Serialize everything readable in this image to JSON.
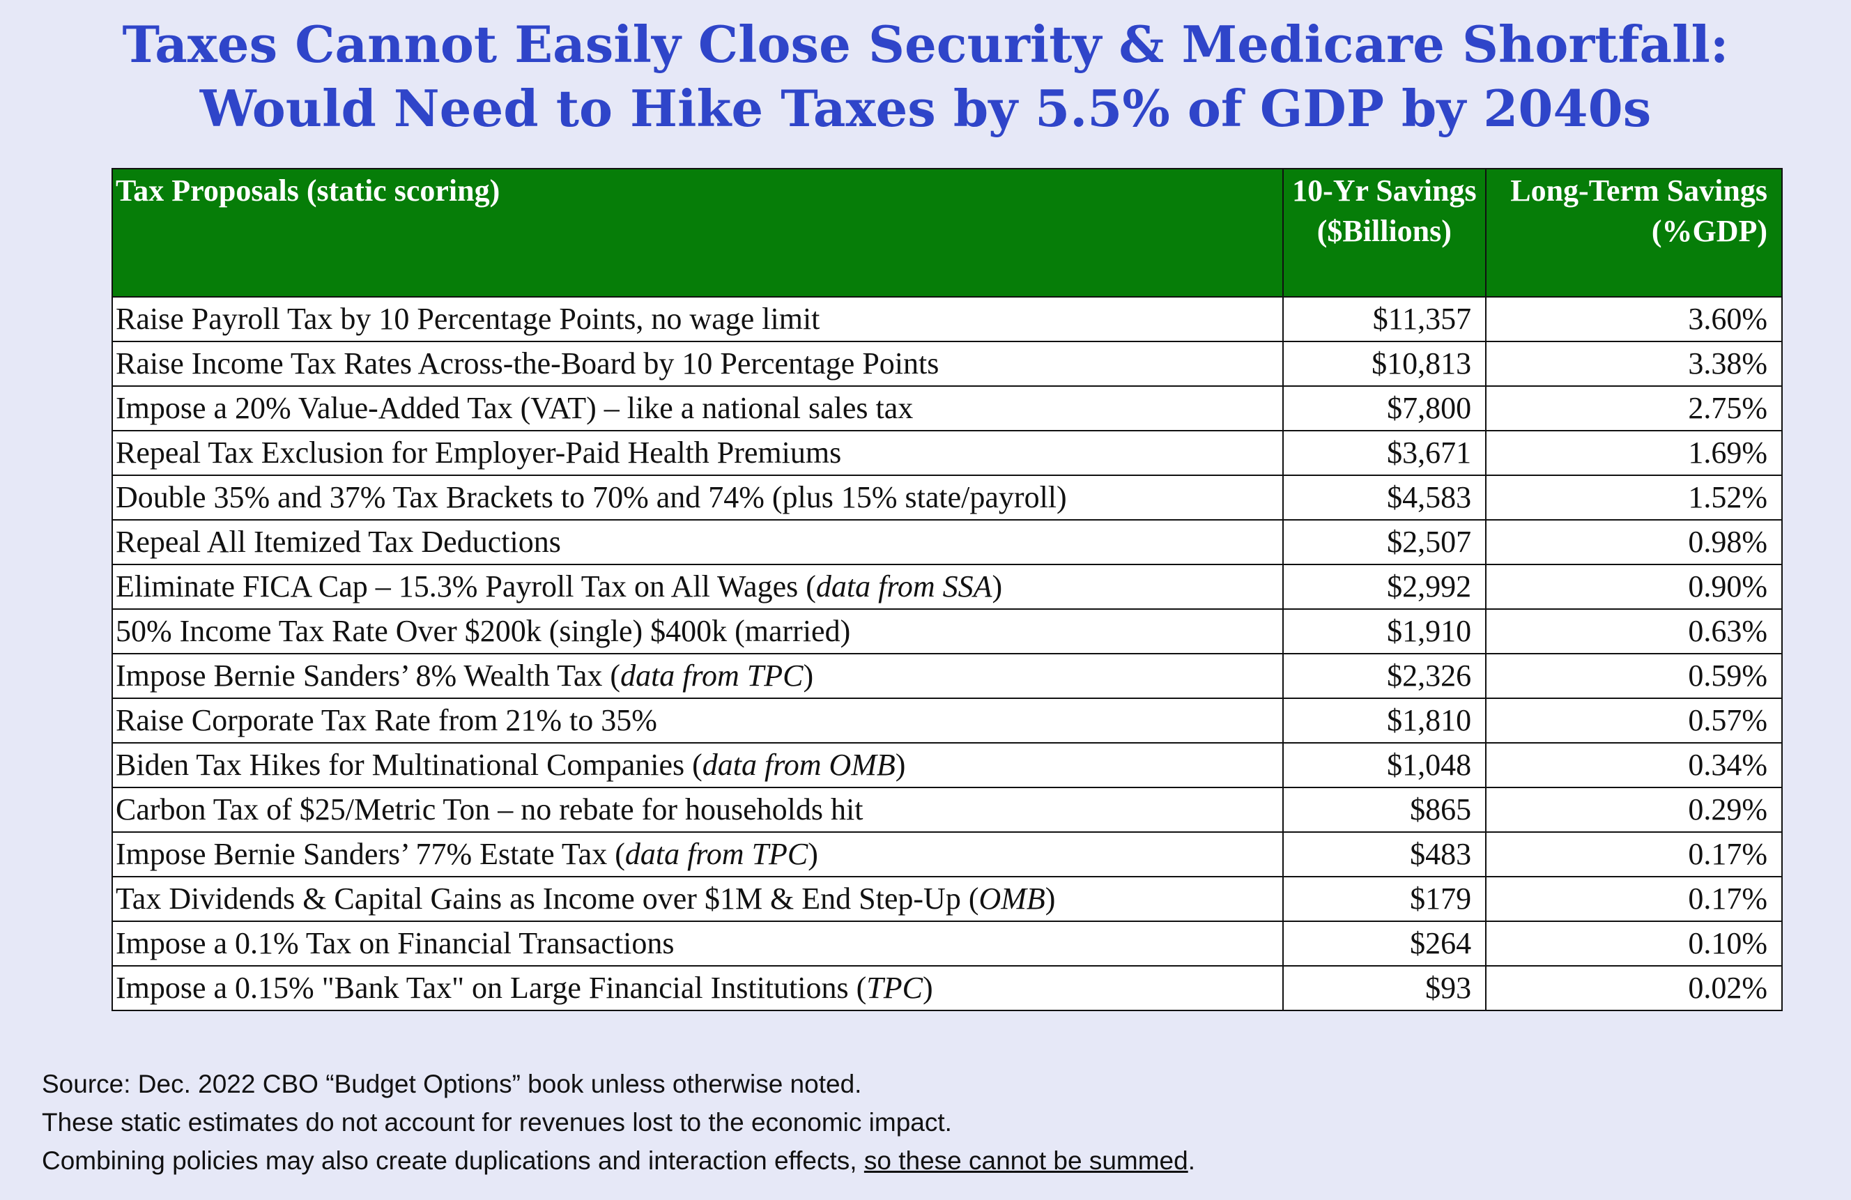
{
  "title": {
    "line1": "Taxes Cannot Easily Close Security & Medicare Shortfall:",
    "line2": "Would Need to Hike Taxes by 5.5% of GDP by 2040s"
  },
  "table": {
    "headers": {
      "proposal": "Tax Proposals (static scoring)",
      "ten_year": "10-Yr Savings ($Billions)",
      "long_term": "Long-Term Savings (%GDP)"
    },
    "rows": [
      {
        "main": "Raise Payroll Tax by 10 Percentage Points, no wage limit",
        "italic": "",
        "tail": "",
        "ten_year": "$11,357",
        "long_term": "3.60%"
      },
      {
        "main": "Raise Income Tax Rates Across-the-Board by 10 Percentage Points",
        "italic": "",
        "tail": "",
        "ten_year": "$10,813",
        "long_term": "3.38%"
      },
      {
        "main": "Impose a 20% Value-Added Tax (VAT) – like a national sales tax",
        "italic": "",
        "tail": "",
        "ten_year": "$7,800",
        "long_term": "2.75%"
      },
      {
        "main": "Repeal Tax Exclusion for Employer-Paid Health Premiums",
        "italic": "",
        "tail": "",
        "ten_year": "$3,671",
        "long_term": "1.69%"
      },
      {
        "main": "Double 35% and 37% Tax Brackets to 70% and 74% (plus 15% state/payroll)",
        "italic": "",
        "tail": "",
        "ten_year": "$4,583",
        "long_term": "1.52%"
      },
      {
        "main": "Repeal All Itemized Tax Deductions",
        "italic": "",
        "tail": "",
        "ten_year": "$2,507",
        "long_term": "0.98%"
      },
      {
        "main": "Eliminate FICA Cap – 15.3% Payroll Tax on All Wages (",
        "italic": "data from SSA",
        "tail": ")",
        "ten_year": "$2,992",
        "long_term": "0.90%"
      },
      {
        "main": "50% Income Tax Rate Over $200k (single) $400k (married)",
        "italic": "",
        "tail": "",
        "ten_year": "$1,910",
        "long_term": "0.63%"
      },
      {
        "main": "Impose Bernie Sanders’ 8% Wealth Tax  (",
        "italic": "data from TPC",
        "tail": ")",
        "ten_year": "$2,326",
        "long_term": "0.59%"
      },
      {
        "main": "Raise Corporate Tax Rate from 21% to 35%",
        "italic": "",
        "tail": "",
        "ten_year": "$1,810",
        "long_term": "0.57%"
      },
      {
        "main": "Biden Tax Hikes for Multinational Companies (",
        "italic": "data from OMB",
        "tail": ")",
        "ten_year": "$1,048",
        "long_term": "0.34%"
      },
      {
        "main": "Carbon Tax of $25/Metric Ton – no rebate for households hit",
        "italic": "",
        "tail": "",
        "ten_year": "$865",
        "long_term": "0.29%"
      },
      {
        "main": "Impose Bernie Sanders’ 77% Estate Tax (",
        "italic": "data from TPC",
        "tail": ")",
        "ten_year": "$483",
        "long_term": "0.17%"
      },
      {
        "main": "Tax Dividends & Capital Gains as Income over $1M & End Step-Up (",
        "italic": "OMB",
        "tail": ")",
        "ten_year": "$179",
        "long_term": "0.17%"
      },
      {
        "main": "Impose a 0.1% Tax on Financial Transactions",
        "italic": "",
        "tail": "",
        "ten_year": "$264",
        "long_term": "0.10%"
      },
      {
        "main": "Impose a 0.15% \"Bank Tax\" on Large Financial Institutions (",
        "italic": "TPC",
        "tail": ")",
        "ten_year": "$93",
        "long_term": "0.02%"
      }
    ]
  },
  "source": {
    "line1": "Source: Dec. 2022 CBO “Budget Options” book unless otherwise noted.",
    "line2": "These static estimates do not account for revenues lost to the economic impact.",
    "line3_prefix": "Combining policies may also create duplications and interaction effects, ",
    "line3_underlined": "so these cannot be summed",
    "line3_suffix": "."
  }
}
